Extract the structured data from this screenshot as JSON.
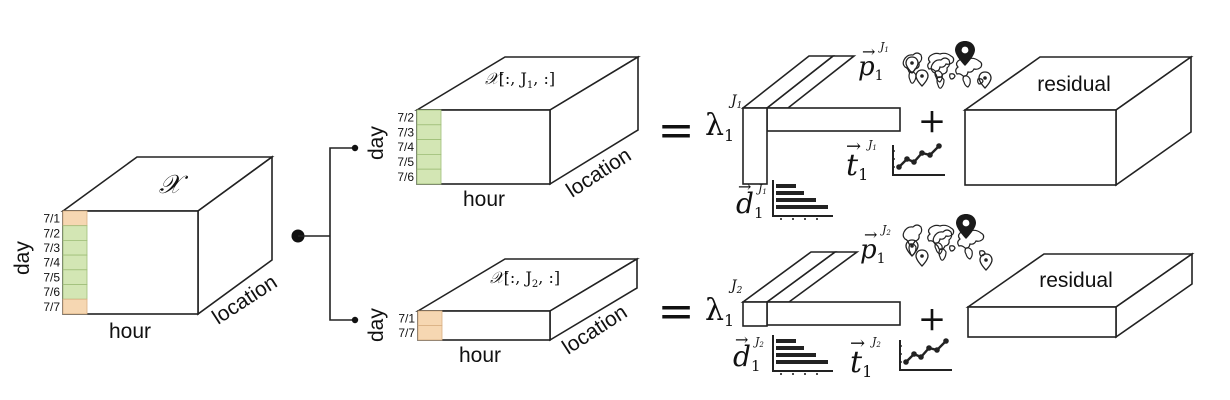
{
  "colors": {
    "green_cell": "#d3e6b4",
    "orange_cell": "#f6d7b2",
    "stroke": "#222222"
  },
  "main": {
    "tensor_symbol": "𝒳",
    "days": [
      "7/1",
      "7/2",
      "7/3",
      "7/4",
      "7/5",
      "7/6",
      "7/7"
    ],
    "day_colors": [
      "orange",
      "green",
      "green",
      "green",
      "green",
      "green",
      "orange"
    ],
    "day_label": "day",
    "hour_label": "hour",
    "location_label": "location"
  },
  "top": {
    "tensor_symbol": "𝒳",
    "slice": "[:, J",
    "slice_sub": "1",
    "slice_end": ", :]",
    "days": [
      "7/2",
      "7/3",
      "7/4",
      "7/5",
      "7/6"
    ],
    "day_label": "day",
    "hour_label": "hour",
    "location_label": "location",
    "equals": "=",
    "lambda": "λ",
    "lambda_sub": "1",
    "lambda_sup": "J",
    "lambda_sup_sub": "1",
    "p_symbol": "p",
    "p_sub": "1",
    "p_sup": "J",
    "p_sup_sub": "1",
    "t_symbol": "t",
    "t_sub": "1",
    "t_sup": "J",
    "t_sup_sub": "1",
    "d_symbol": "d",
    "d_sub": "1",
    "d_sup": "J",
    "d_sup_sub": "1",
    "plus": "+",
    "residual_label": "residual",
    "icons": [
      "world-map-icon",
      "location-pin-icon",
      "line-chart-icon",
      "bar-chart-icon"
    ]
  },
  "bottom": {
    "tensor_symbol": "𝒳",
    "slice": "[:, J",
    "slice_sub": "2",
    "slice_end": ", :]",
    "days": [
      "7/1",
      "7/7"
    ],
    "day_label": "day",
    "hour_label": "hour",
    "location_label": "location",
    "equals": "=",
    "lambda": "λ",
    "lambda_sub": "1",
    "lambda_sup": "J",
    "lambda_sup_sub": "2",
    "p_symbol": "p",
    "p_sub": "1",
    "p_sup": "J",
    "p_sup_sub": "2",
    "t_symbol": "t",
    "t_sub": "1",
    "t_sup": "J",
    "t_sup_sub": "2",
    "d_symbol": "d",
    "d_sub": "1",
    "d_sup": "J",
    "d_sup_sub": "2",
    "plus": "+",
    "residual_label": "residual",
    "icons": [
      "world-map-icon",
      "location-pin-icon",
      "line-chart-icon",
      "bar-chart-icon"
    ]
  }
}
